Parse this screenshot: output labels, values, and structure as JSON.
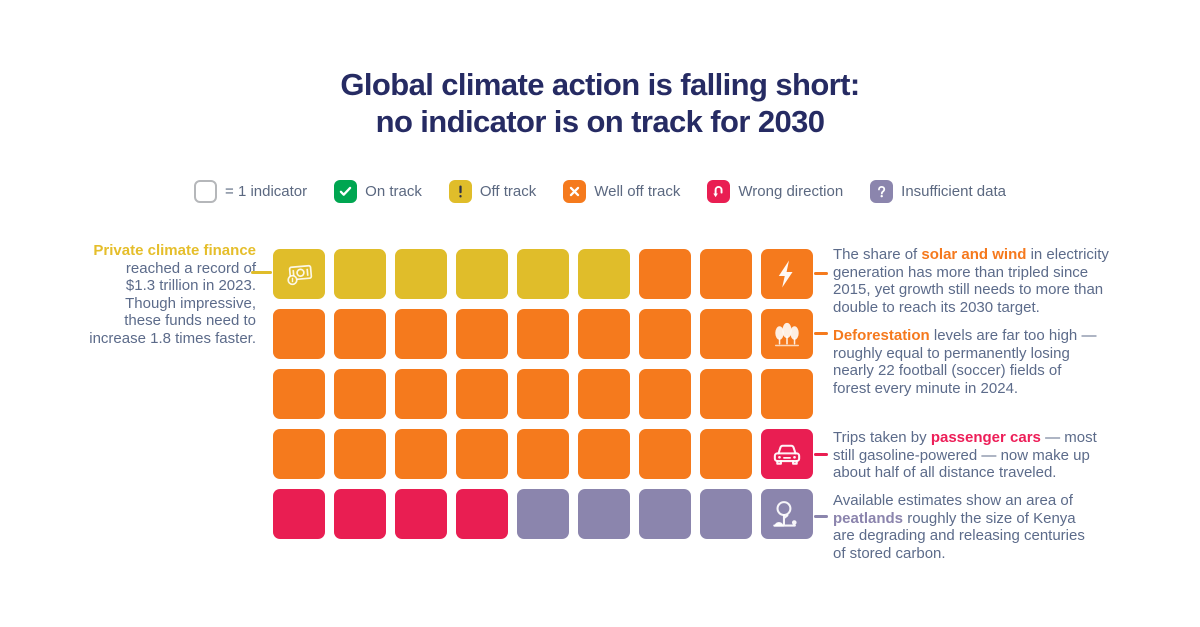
{
  "title": {
    "line1": "Global climate action is falling short:",
    "line2": "no indicator is on track for 2030"
  },
  "legend": {
    "items": [
      {
        "icon": "blank-square-icon",
        "key": "blank",
        "label": "= 1 indicator"
      },
      {
        "icon": "check-icon",
        "key": "green",
        "label": "On track"
      },
      {
        "icon": "exclamation-icon",
        "key": "yellow",
        "label": "Off track"
      },
      {
        "icon": "cross-icon",
        "key": "orange",
        "label": "Well off track"
      },
      {
        "icon": "uturn-arrow-icon",
        "key": "pink",
        "label": "Wrong direction"
      },
      {
        "icon": "question-icon",
        "key": "purple",
        "label": "Insufficient data"
      }
    ]
  },
  "colors": {
    "navy": "#262b63",
    "slate": "#5c6b8a",
    "yellow": "#e0bd2a",
    "orange": "#f57a1d",
    "pink": "#e91e52",
    "purple": "#8b85ad",
    "green": "#00a651"
  },
  "grid": {
    "cells": [
      [
        {
          "c": "yellow",
          "icon": "money-icon"
        },
        {
          "c": "yellow"
        },
        {
          "c": "yellow"
        },
        {
          "c": "yellow"
        },
        {
          "c": "yellow"
        },
        {
          "c": "yellow"
        },
        {
          "c": "orange"
        },
        {
          "c": "orange"
        },
        {
          "c": "orange",
          "icon": "lightning-icon"
        }
      ],
      [
        {
          "c": "orange"
        },
        {
          "c": "orange"
        },
        {
          "c": "orange"
        },
        {
          "c": "orange"
        },
        {
          "c": "orange"
        },
        {
          "c": "orange"
        },
        {
          "c": "orange"
        },
        {
          "c": "orange"
        },
        {
          "c": "orange",
          "icon": "trees-icon"
        }
      ],
      [
        {
          "c": "orange"
        },
        {
          "c": "orange"
        },
        {
          "c": "orange"
        },
        {
          "c": "orange"
        },
        {
          "c": "orange"
        },
        {
          "c": "orange"
        },
        {
          "c": "orange"
        },
        {
          "c": "orange"
        },
        {
          "c": "orange"
        }
      ],
      [
        {
          "c": "orange"
        },
        {
          "c": "orange"
        },
        {
          "c": "orange"
        },
        {
          "c": "orange"
        },
        {
          "c": "orange"
        },
        {
          "c": "orange"
        },
        {
          "c": "orange"
        },
        {
          "c": "orange"
        },
        {
          "c": "pink",
          "icon": "car-icon"
        }
      ],
      [
        {
          "c": "pink"
        },
        {
          "c": "pink"
        },
        {
          "c": "pink"
        },
        {
          "c": "pink"
        },
        {
          "c": "purple"
        },
        {
          "c": "purple"
        },
        {
          "c": "purple"
        },
        {
          "c": "purple"
        },
        {
          "c": "purple",
          "icon": "peatland-icon"
        }
      ]
    ]
  },
  "annotations": {
    "left": {
      "lines": [
        [
          {
            "t": "Private climate finance",
            "hl": "yellow"
          }
        ],
        [
          {
            "t": "reached a record of"
          }
        ],
        [
          {
            "t": "$1.3 trillion in 2023."
          }
        ],
        [
          {
            "t": "Though impressive,"
          }
        ],
        [
          {
            "t": "these funds need to"
          }
        ],
        [
          {
            "t": "increase 1.8 times faster."
          }
        ]
      ]
    },
    "right": [
      {
        "lines": [
          [
            {
              "t": "The share of "
            },
            {
              "t": "solar and wind",
              "hl": "orange"
            },
            {
              "t": " in electricity"
            }
          ],
          [
            {
              "t": "generation has more than tripled since"
            }
          ],
          [
            {
              "t": "2015, yet growth still needs to more than"
            }
          ],
          [
            {
              "t": "double to reach its 2030 target."
            }
          ]
        ]
      },
      {
        "lines": [
          [
            {
              "t": "Deforestation",
              "hl": "orange"
            },
            {
              "t": " levels are far too high —"
            }
          ],
          [
            {
              "t": "roughly equal to permanently losing"
            }
          ],
          [
            {
              "t": "nearly 22 football (soccer) fields of"
            }
          ],
          [
            {
              "t": "forest every minute in 2024."
            }
          ]
        ]
      },
      {
        "lines": [
          [
            {
              "t": "Trips taken by "
            },
            {
              "t": "passenger cars",
              "hl": "pink"
            },
            {
              "t": " — most"
            }
          ],
          [
            {
              "t": "still gasoline-powered — now make up"
            }
          ],
          [
            {
              "t": "about half of all distance traveled."
            }
          ]
        ]
      },
      {
        "lines": [
          [
            {
              "t": "Available estimates show an area of"
            }
          ],
          [
            {
              "t": "peatlands",
              "hl": "purple"
            },
            {
              "t": " roughly the size of Kenya"
            }
          ],
          [
            {
              "t": "are degrading and releasing centuries"
            }
          ],
          [
            {
              "t": "of stored carbon."
            }
          ]
        ]
      }
    ]
  },
  "chart_data": {
    "type": "heatmap",
    "subtype": "waffle-unit-chart",
    "title": "Global climate action is falling short: no indicator is on track for 2030",
    "unit": "1 square = 1 indicator",
    "total_indicators": 45,
    "rows": 5,
    "columns": 9,
    "counts": {
      "On track": 0,
      "Off track": 6,
      "Well off track": 29,
      "Wrong direction": 5,
      "Insufficient data": 5
    },
    "status_colors": {
      "Off track": "#e0bd2a",
      "Well off track": "#f57a1d",
      "Wrong direction": "#e91e52",
      "Insufficient data": "#8b85ad",
      "On track": "#00a651"
    },
    "grid_statuses": [
      [
        "Off track",
        "Off track",
        "Off track",
        "Off track",
        "Off track",
        "Off track",
        "Well off track",
        "Well off track",
        "Well off track"
      ],
      [
        "Well off track",
        "Well off track",
        "Well off track",
        "Well off track",
        "Well off track",
        "Well off track",
        "Well off track",
        "Well off track",
        "Well off track"
      ],
      [
        "Well off track",
        "Well off track",
        "Well off track",
        "Well off track",
        "Well off track",
        "Well off track",
        "Well off track",
        "Well off track",
        "Well off track"
      ],
      [
        "Well off track",
        "Well off track",
        "Well off track",
        "Well off track",
        "Well off track",
        "Well off track",
        "Well off track",
        "Well off track",
        "Wrong direction"
      ],
      [
        "Wrong direction",
        "Wrong direction",
        "Wrong direction",
        "Wrong direction",
        "Insufficient data",
        "Insufficient data",
        "Insufficient data",
        "Insufficient data",
        "Insufficient data"
      ]
    ],
    "legend_position": "top",
    "annotations": [
      "Private climate finance reached a record of $1.3 trillion in 2023. Though impressive, these funds need to increase 1.8 times faster.",
      "The share of solar and wind in electricity generation has more than tripled since 2015, yet growth still needs to more than double to reach its 2030 target.",
      "Deforestation levels are far too high — roughly equal to permanently losing nearly 22 football (soccer) fields of forest every minute in 2024.",
      "Trips taken by passenger cars — most still gasoline-powered — now make up about half of all distance traveled.",
      "Available estimates show an area of peatlands roughly the size of Kenya are degrading and releasing centuries of stored carbon."
    ]
  }
}
